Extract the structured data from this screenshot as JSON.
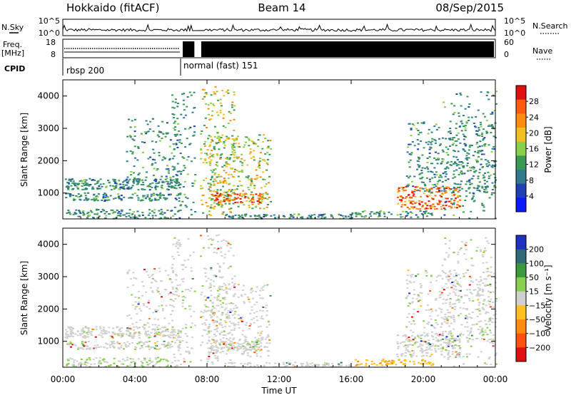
{
  "header": {
    "station": "Hokkaido (fitACF)",
    "beam": "Beam 14",
    "date": "08/Sep/2015"
  },
  "summary_panels": {
    "nsky": {
      "left_label": "N.Sky",
      "left_ticks": [
        "10^5",
        "10^0"
      ],
      "right_label": "N.Search",
      "right_ticks": [
        "10^5",
        "10^0"
      ]
    },
    "freq": {
      "left_label_line1": "Freq.",
      "left_label_line2": "[MHz]",
      "left_ticks": [
        "18",
        "8"
      ],
      "right_label": "Nave",
      "right_ticks": [
        "60",
        "0"
      ]
    },
    "cpid": {
      "label": "CPID",
      "segments": [
        {
          "name": "rbsp 200",
          "start_hour": 0,
          "end_hour": 6.5
        },
        {
          "name": "normal (fast) 151",
          "start_hour": 6.5,
          "end_hour": 24
        }
      ]
    }
  },
  "colors": {
    "power_scale": [
      "#0a1aff",
      "#1f3fb4",
      "#2f7a8c",
      "#3a9a55",
      "#88d04a",
      "#f0c020",
      "#ff8a10",
      "#ff5a10",
      "#e11010"
    ],
    "velocity_scale": [
      "#2030c0",
      "#2e6a78",
      "#3a9a3a",
      "#8ad050",
      "#d0d0d0",
      "#ffc020",
      "#ff8a10",
      "#ff5010",
      "#e01010"
    ]
  },
  "chart_data": [
    {
      "type": "heatmap",
      "title": "Power",
      "xlabel": "",
      "ylabel": "Slant Range [km]",
      "y_ticks": [
        "1000",
        "2000",
        "3000",
        "4000"
      ],
      "ylim": [
        200,
        4500
      ],
      "xlim_hours": [
        0,
        24
      ],
      "colorbar_label": "Power [dB]",
      "colorbar_ticks": [
        "4",
        "8",
        "12",
        "16",
        "20",
        "24",
        "28"
      ],
      "colorbar_range": [
        0,
        30
      ],
      "data_gap_hours": [
        7.3,
        7.6
      ]
    },
    {
      "type": "heatmap",
      "title": "Velocity",
      "xlabel": "Time UT",
      "ylabel": "Slant Range [km]",
      "x_ticks": [
        "00:00",
        "04:00",
        "08:00",
        "12:00",
        "16:00",
        "20:00",
        "00:00"
      ],
      "y_ticks": [
        "1000",
        "2000",
        "3000",
        "4000"
      ],
      "ylim": [
        200,
        4500
      ],
      "xlim_hours": [
        0,
        24
      ],
      "colorbar_label": "Velocity [m s⁻¹]",
      "colorbar_ticks": [
        "200",
        "100",
        "50",
        "15",
        "−15",
        "−50",
        "−100",
        "−200"
      ],
      "data_gap_hours": [
        7.3,
        7.6
      ]
    }
  ]
}
